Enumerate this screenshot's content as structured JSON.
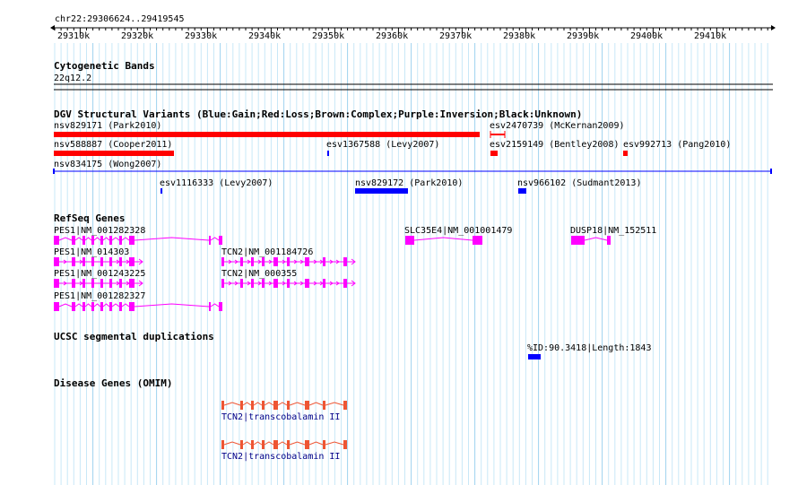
{
  "ruler": {
    "location": "chr22:29306624..29419545",
    "ticks": [
      "29310k",
      "29320k",
      "29330k",
      "29340k",
      "29350k",
      "29360k",
      "29370k",
      "29380k",
      "29390k",
      "29400k",
      "29410k"
    ]
  },
  "cytobands": {
    "title": "Cytogenetic Bands",
    "band": "22q12.2"
  },
  "dgv": {
    "title": "DGV Structural Variants (Blue:Gain;Red:Loss;Brown:Complex;Purple:Inversion;Black:Unknown)",
    "colors": {
      "gain": "#0000ff",
      "loss": "#ff0000"
    },
    "variants": [
      {
        "label": "nsv829171 (Park2010)",
        "type": "loss"
      },
      {
        "label": "esv2470739 (McKernan2009)",
        "type": "loss"
      },
      {
        "label": "nsv588887 (Cooper2011)",
        "type": "loss"
      },
      {
        "label": "esv1367588 (Levy2007)",
        "type": "gain"
      },
      {
        "label": "esv2159149 (Bentley2008)",
        "type": "loss"
      },
      {
        "label": "esv992713 (Pang2010)",
        "type": "loss"
      },
      {
        "label": "nsv834175 (Wong2007)",
        "type": "gain"
      },
      {
        "label": "esv1116333 (Levy2007)",
        "type": "gain"
      },
      {
        "label": "nsv829172 (Park2010)",
        "type": "gain"
      },
      {
        "label": "nsv966102 (Sudmant2013)",
        "type": "gain"
      }
    ]
  },
  "refseq": {
    "title": "RefSeq Genes",
    "color": "#ff00ff",
    "genes": [
      {
        "label": "PES1|NM_001282328"
      },
      {
        "label": "SLC35E4|NM_001001479"
      },
      {
        "label": "DUSP18|NM_152511"
      },
      {
        "label": "PES1|NM_014303"
      },
      {
        "label": "TCN2|NM_001184726"
      },
      {
        "label": "PES1|NM_001243225"
      },
      {
        "label": "TCN2|NM_000355"
      },
      {
        "label": "PES1|NM_001282327"
      }
    ]
  },
  "segdups": {
    "title": "UCSC segmental duplications",
    "label": "%ID:90.3418|Length:1843",
    "color": "#0000ff"
  },
  "omim": {
    "title": "Disease Genes (OMIM)",
    "color": "#ee5533",
    "label_color": "#000088",
    "genes": [
      {
        "label": "TCN2|transcobalamin II"
      },
      {
        "label": "TCN2|transcobalamin II"
      }
    ]
  }
}
